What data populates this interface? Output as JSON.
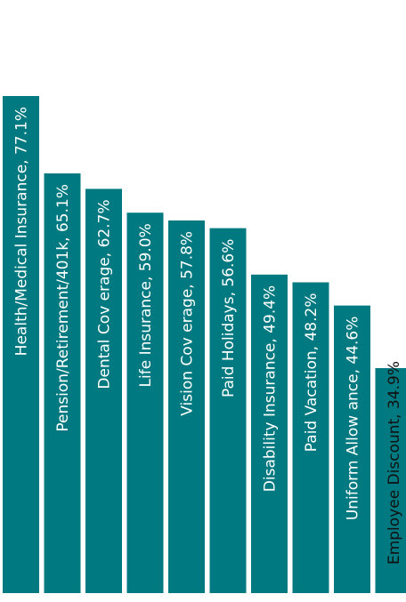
{
  "colors": {
    "bar": "#007A80",
    "label_inside": "#ffffff",
    "label_outside": "#111111"
  },
  "chart_data": {
    "type": "bar",
    "orientation": "vertical",
    "grid": false,
    "legend": "none",
    "ylim": [
      0,
      80
    ],
    "categories": [
      "Health/Medical Insurance",
      "Pension/Retirement/401k",
      "Dental Coverage",
      "Life Insurance",
      "Vision Coverage",
      "Paid Holidays",
      "Disability Insurance",
      "Paid Vacation",
      "Uniform Allowance",
      "Employee Discount"
    ],
    "values": [
      77.1,
      65.1,
      62.7,
      59.0,
      57.8,
      56.6,
      49.4,
      48.2,
      44.6,
      34.9
    ],
    "data_labels": [
      "Health/Medical Insurance, 77.1%",
      "Pension/Retirement/401k, 65.1%",
      "Dental Cov erage, 62.7%",
      "Life Insurance, 59.0%",
      "Vision Cov erage, 57.8%",
      "Paid Holidays, 56.6%",
      "Disability Insurance, 49.4%",
      "Paid Vacation, 48.2%",
      "Uniform Allow ance, 44.6%",
      "Employee Discount, 34.9%"
    ],
    "label_inside": [
      true,
      true,
      true,
      true,
      true,
      true,
      true,
      true,
      true,
      false
    ]
  }
}
